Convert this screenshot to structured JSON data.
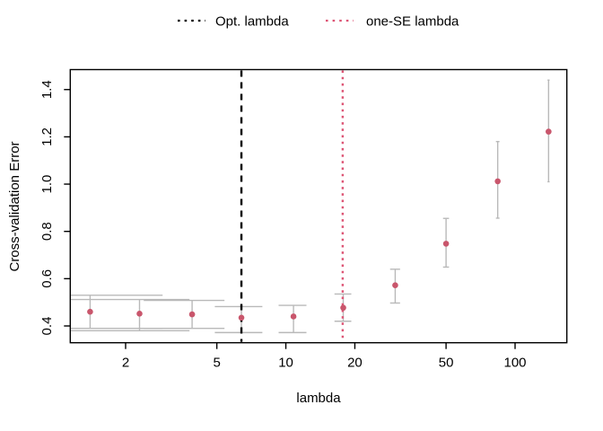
{
  "legend": {
    "items": [
      {
        "label": "Opt. lambda",
        "color": "#000000",
        "style": "dotted"
      },
      {
        "label": "one-SE lambda",
        "color": "#dd5575",
        "style": "dotted"
      }
    ]
  },
  "chart_data": {
    "type": "scatter",
    "title": "",
    "xlabel": "lambda",
    "ylabel": "Cross-validation Error",
    "x_scale": "log",
    "x_domain": [
      1.147,
      168.2
    ],
    "y_domain": [
      0.329,
      1.4845
    ],
    "x_ticks": [
      2,
      5,
      10,
      20,
      50,
      100
    ],
    "y_ticks": [
      0.4,
      0.6,
      0.8,
      1.0,
      1.2,
      1.4
    ],
    "grid": false,
    "legend_position": "top-center",
    "cap_halfwidth_lambda": 1.5,
    "points": [
      {
        "lambda": 1.4,
        "cv_error": 0.46,
        "lower": 0.39,
        "upper": 0.53
      },
      {
        "lambda": 2.3,
        "cv_error": 0.452,
        "lower": 0.38,
        "upper": 0.512
      },
      {
        "lambda": 3.9,
        "cv_error": 0.449,
        "lower": 0.39,
        "upper": 0.508
      },
      {
        "lambda": 6.4,
        "cv_error": 0.435,
        "lower": 0.372,
        "upper": 0.482
      },
      {
        "lambda": 10.8,
        "cv_error": 0.44,
        "lower": 0.372,
        "upper": 0.487
      },
      {
        "lambda": 17.8,
        "cv_error": 0.477,
        "lower": 0.42,
        "upper": 0.535
      },
      {
        "lambda": 30,
        "cv_error": 0.572,
        "lower": 0.497,
        "upper": 0.64
      },
      {
        "lambda": 50,
        "cv_error": 0.748,
        "lower": 0.649,
        "upper": 0.855
      },
      {
        "lambda": 84,
        "cv_error": 1.012,
        "lower": 0.856,
        "upper": 1.18
      },
      {
        "lambda": 140,
        "cv_error": 1.222,
        "lower": 1.01,
        "upper": 1.44
      }
    ],
    "vlines": [
      {
        "name": "opt-lambda",
        "x": 6.4,
        "color": "#000000",
        "style": "dashed",
        "label": "Opt. lambda"
      },
      {
        "name": "one-se-lambda",
        "x": 17.7,
        "color": "#dd5575",
        "style": "dotted",
        "label": "one-SE lambda"
      }
    ],
    "colors": {
      "point": "#c9566c",
      "error_bar": "#b9b9b9",
      "axis": "#000000",
      "text": "#000000",
      "background": "#ffffff"
    }
  }
}
